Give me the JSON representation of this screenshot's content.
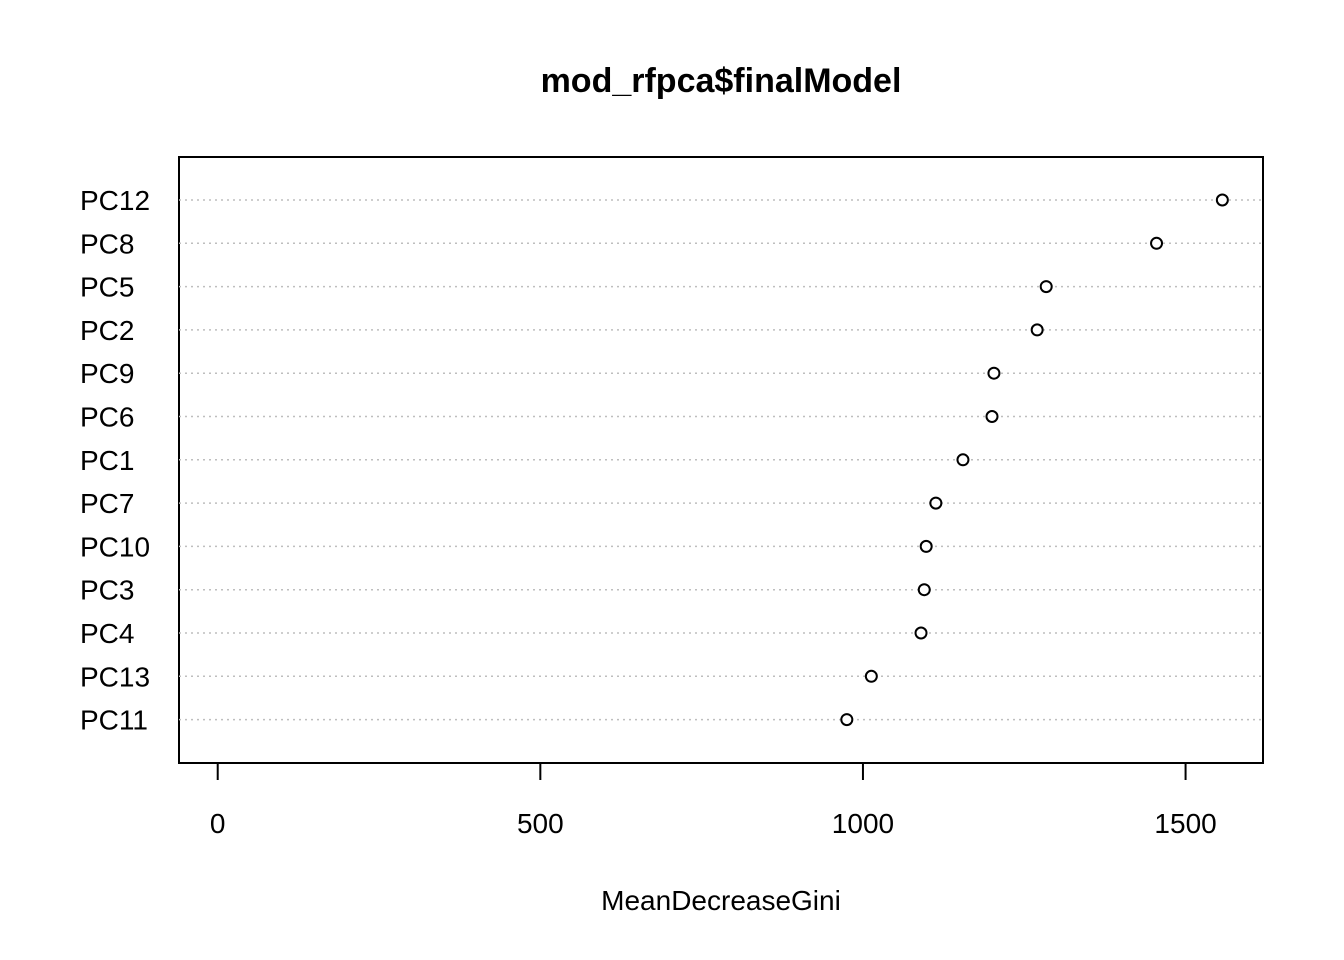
{
  "chart_data": {
    "type": "scatter",
    "subtype": "dotchart",
    "title": "mod_rfpca$finalModel",
    "xlabel": "MeanDecreaseGini",
    "ylabel": "",
    "xlim": [
      -60,
      1620
    ],
    "xticks": [
      0,
      500,
      1000,
      1500
    ],
    "grid": "dotted horizontal lines per category",
    "legend": "none",
    "categories": [
      "PC12",
      "PC8",
      "PC5",
      "PC2",
      "PC9",
      "PC6",
      "PC1",
      "PC7",
      "PC10",
      "PC3",
      "PC4",
      "PC13",
      "PC11"
    ],
    "values": [
      1557,
      1455,
      1284,
      1270,
      1203,
      1200,
      1155,
      1113,
      1098,
      1095,
      1090,
      1013,
      975
    ],
    "colors": {
      "axis": "#000000",
      "grid": "#bebebe",
      "point_stroke": "#000000",
      "point_fill": "#ffffff"
    }
  }
}
